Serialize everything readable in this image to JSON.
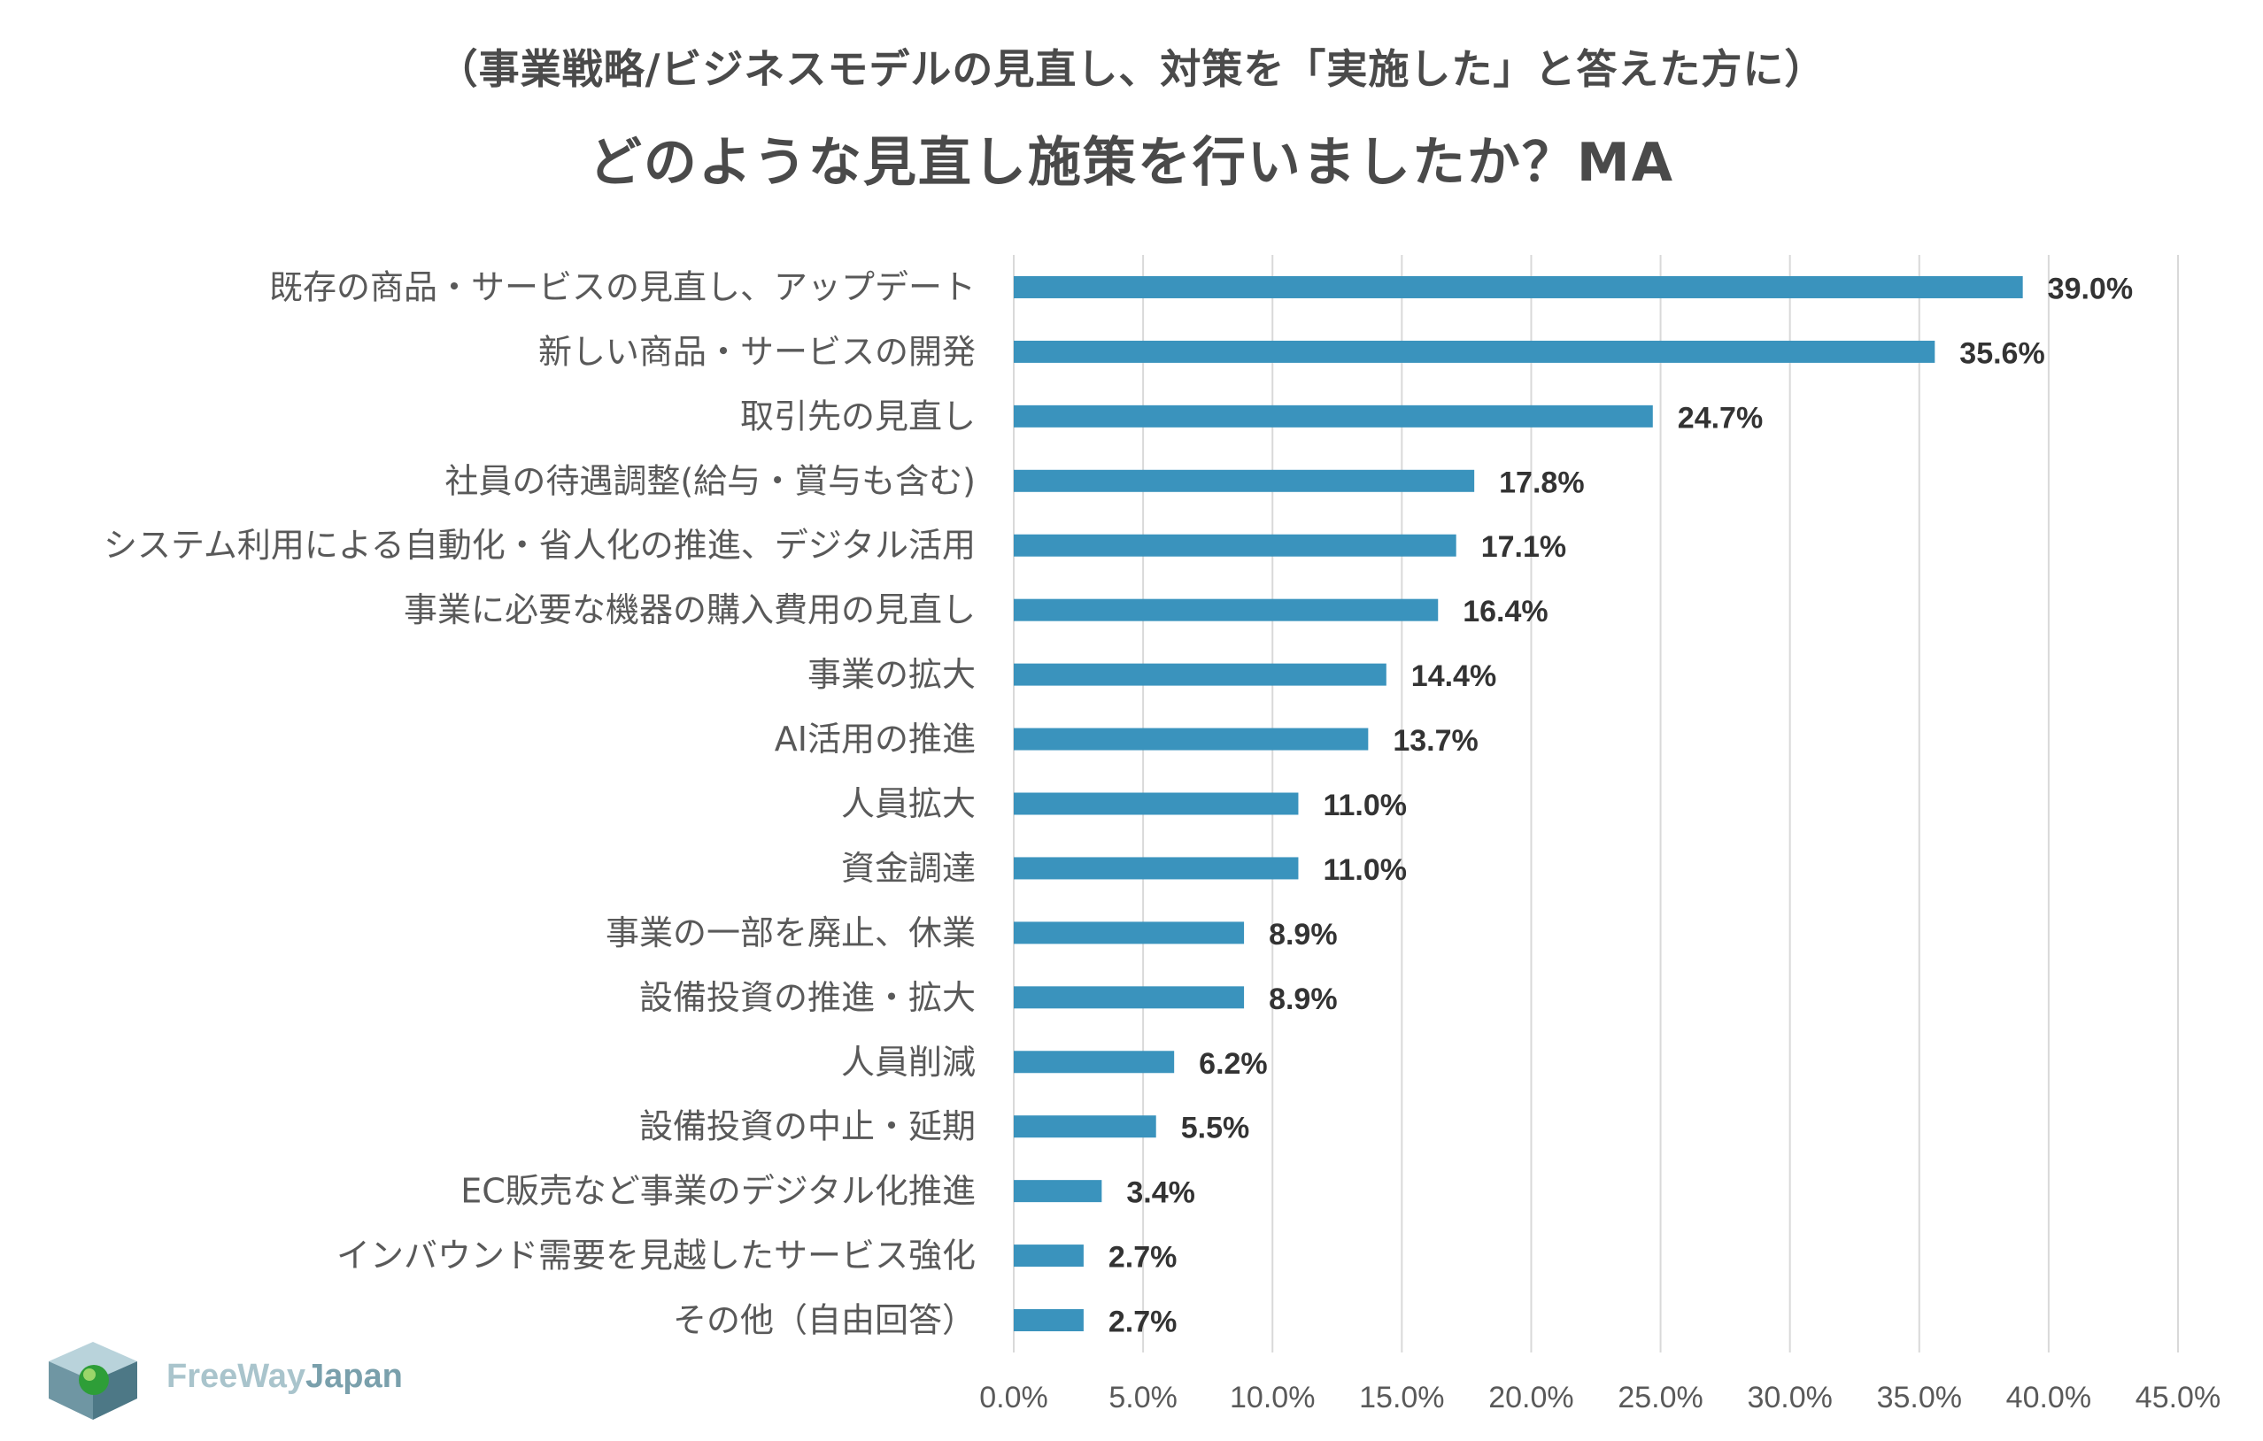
{
  "title_line1": "（事業戦略/ビジネスモデルの見直し、対策を「実施した」と答えた方に）",
  "title_line2": "どのような見直し施策を行いましたか？MA",
  "logo": {
    "part1": "FreeWay",
    "part2": "Japan"
  },
  "colors": {
    "bar": "#3a93bd",
    "grid": "#d9d9d9",
    "label": "#595959",
    "value": "#333333"
  },
  "chart_data": {
    "type": "bar",
    "orientation": "horizontal",
    "categories": [
      "既存の商品・サービスの見直し、アップデート",
      "新しい商品・サービスの開発",
      "取引先の見直し",
      "社員の待遇調整(給与・賞与も含む)",
      "システム利用による自動化・省人化の推進、デジタル活用",
      "事業に必要な機器の購入費用の見直し",
      "事業の拡大",
      "AI活用の推進",
      "人員拡大",
      "資金調達",
      "事業の一部を廃止、休業",
      "設備投資の推進・拡大",
      "人員削減",
      "設備投資の中止・延期",
      "EC販売など事業のデジタル化推進",
      "インバウンド需要を見越したサービス強化",
      "その他（自由回答）"
    ],
    "values": [
      39.0,
      35.6,
      24.7,
      17.8,
      17.1,
      16.4,
      14.4,
      13.7,
      11.0,
      11.0,
      8.9,
      8.9,
      6.2,
      5.5,
      3.4,
      2.7,
      2.7
    ],
    "value_labels": [
      "39.0%",
      "35.6%",
      "24.7%",
      "17.8%",
      "17.1%",
      "16.4%",
      "14.4%",
      "13.7%",
      "11.0%",
      "11.0%",
      "8.9%",
      "8.9%",
      "6.2%",
      "5.5%",
      "3.4%",
      "2.7%",
      "2.7%"
    ],
    "xlim": [
      0,
      45
    ],
    "ticks": [
      0,
      5,
      10,
      15,
      20,
      25,
      30,
      35,
      40,
      45
    ],
    "tick_labels": [
      "0.0%",
      "5.0%",
      "10.0%",
      "15.0%",
      "20.0%",
      "25.0%",
      "30.0%",
      "35.0%",
      "40.0%",
      "45.0%"
    ],
    "grid": true,
    "legend": "none"
  }
}
